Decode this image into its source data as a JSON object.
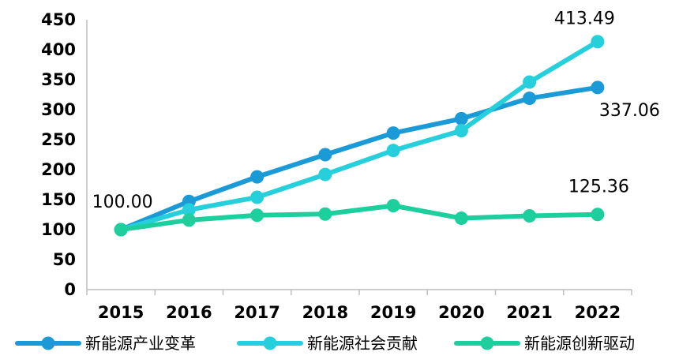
{
  "chart_data": {
    "type": "line",
    "categories": [
      "2015",
      "2016",
      "2017",
      "2018",
      "2019",
      "2020",
      "2021",
      "2022"
    ],
    "ylim": [
      0,
      450
    ],
    "yticks": [
      "0",
      "50",
      "100",
      "150",
      "200",
      "250",
      "300",
      "350",
      "400",
      "450"
    ],
    "grid": false,
    "legend_position": "bottom",
    "series": [
      {
        "name": "新能源产业变革",
        "color": "#1a9ad6",
        "values": [
          100.0,
          147,
          188,
          225,
          261,
          285,
          319,
          337.06
        ]
      },
      {
        "name": "新能源社会贡献",
        "color": "#26cfdc",
        "values": [
          100.0,
          133,
          154,
          192,
          232,
          265,
          346,
          413.49
        ]
      },
      {
        "name": "新能源创新驱动",
        "color": "#1ecf9e",
        "values": [
          100.0,
          116,
          124,
          126,
          140,
          119,
          123,
          125.36
        ]
      }
    ],
    "data_labels": [
      {
        "text": "100.00",
        "series": 0,
        "index": 0
      },
      {
        "text": "413.49",
        "series": 1,
        "index": 7
      },
      {
        "text": "337.06",
        "series": 0,
        "index": 7
      },
      {
        "text": "125.36",
        "series": 2,
        "index": 7
      }
    ]
  }
}
